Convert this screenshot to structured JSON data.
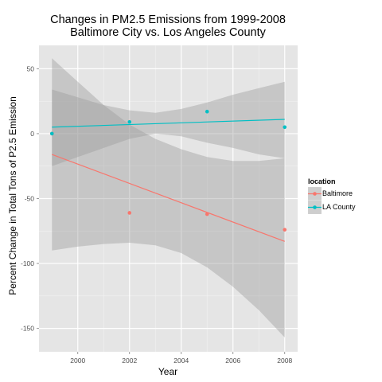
{
  "chart_data": {
    "type": "scatter",
    "title_lines": [
      "Changes in PM2.5 Emissions from 1999-2008",
      "Baltimore City vs. Los Angeles County"
    ],
    "xlabel": "Year",
    "ylabel": "Percent Change in Total Tons of P2.5 Emission",
    "xlim": [
      1998.5,
      2008.5
    ],
    "ylim": [
      -168,
      68
    ],
    "x_ticks": [
      2000,
      2002,
      2004,
      2006,
      2008
    ],
    "y_ticks": [
      -150,
      -100,
      -50,
      0,
      50
    ],
    "grid": true,
    "legend_title": "location",
    "legend_position": "right",
    "series": [
      {
        "name": "Baltimore",
        "color": "#F8766D",
        "points": [
          {
            "x": 1999,
            "y": 0
          },
          {
            "x": 2002,
            "y": -61
          },
          {
            "x": 2005,
            "y": -62
          },
          {
            "x": 2008,
            "y": -74
          }
        ],
        "fit": {
          "x0": 1999,
          "y0": -16,
          "x1": 2008,
          "y1": -83
        },
        "band": [
          {
            "x": 1999,
            "lo": -90,
            "hi": 58
          },
          {
            "x": 2000,
            "lo": -87,
            "hi": 40
          },
          {
            "x": 2001,
            "lo": -85,
            "hi": 22
          },
          {
            "x": 2002,
            "lo": -84,
            "hi": 7
          },
          {
            "x": 2003,
            "lo": -86,
            "hi": -4
          },
          {
            "x": 2004,
            "lo": -92,
            "hi": -12
          },
          {
            "x": 2005,
            "lo": -103,
            "hi": -18
          },
          {
            "x": 2006,
            "lo": -118,
            "hi": -21
          },
          {
            "x": 2007,
            "lo": -136,
            "hi": -21
          },
          {
            "x": 2008,
            "lo": -157,
            "hi": -19
          }
        ]
      },
      {
        "name": "LA County",
        "color": "#00BFC4",
        "points": [
          {
            "x": 1999,
            "y": 0
          },
          {
            "x": 2002,
            "y": 9
          },
          {
            "x": 2005,
            "y": 17
          },
          {
            "x": 2008,
            "y": 5
          }
        ],
        "fit": {
          "x0": 1999,
          "y0": 5,
          "x1": 2008,
          "y1": 11
        },
        "band": [
          {
            "x": 1999,
            "lo": -25,
            "hi": 34
          },
          {
            "x": 2000,
            "lo": -18,
            "hi": 28
          },
          {
            "x": 2001,
            "lo": -11,
            "hi": 22
          },
          {
            "x": 2002,
            "lo": -4,
            "hi": 18
          },
          {
            "x": 2003,
            "lo": 0,
            "hi": 16
          },
          {
            "x": 2004,
            "lo": -2,
            "hi": 19
          },
          {
            "x": 2005,
            "lo": -7,
            "hi": 24
          },
          {
            "x": 2006,
            "lo": -11,
            "hi": 30
          },
          {
            "x": 2007,
            "lo": -16,
            "hi": 35
          },
          {
            "x": 2008,
            "lo": -19,
            "hi": 40
          }
        ]
      }
    ]
  }
}
